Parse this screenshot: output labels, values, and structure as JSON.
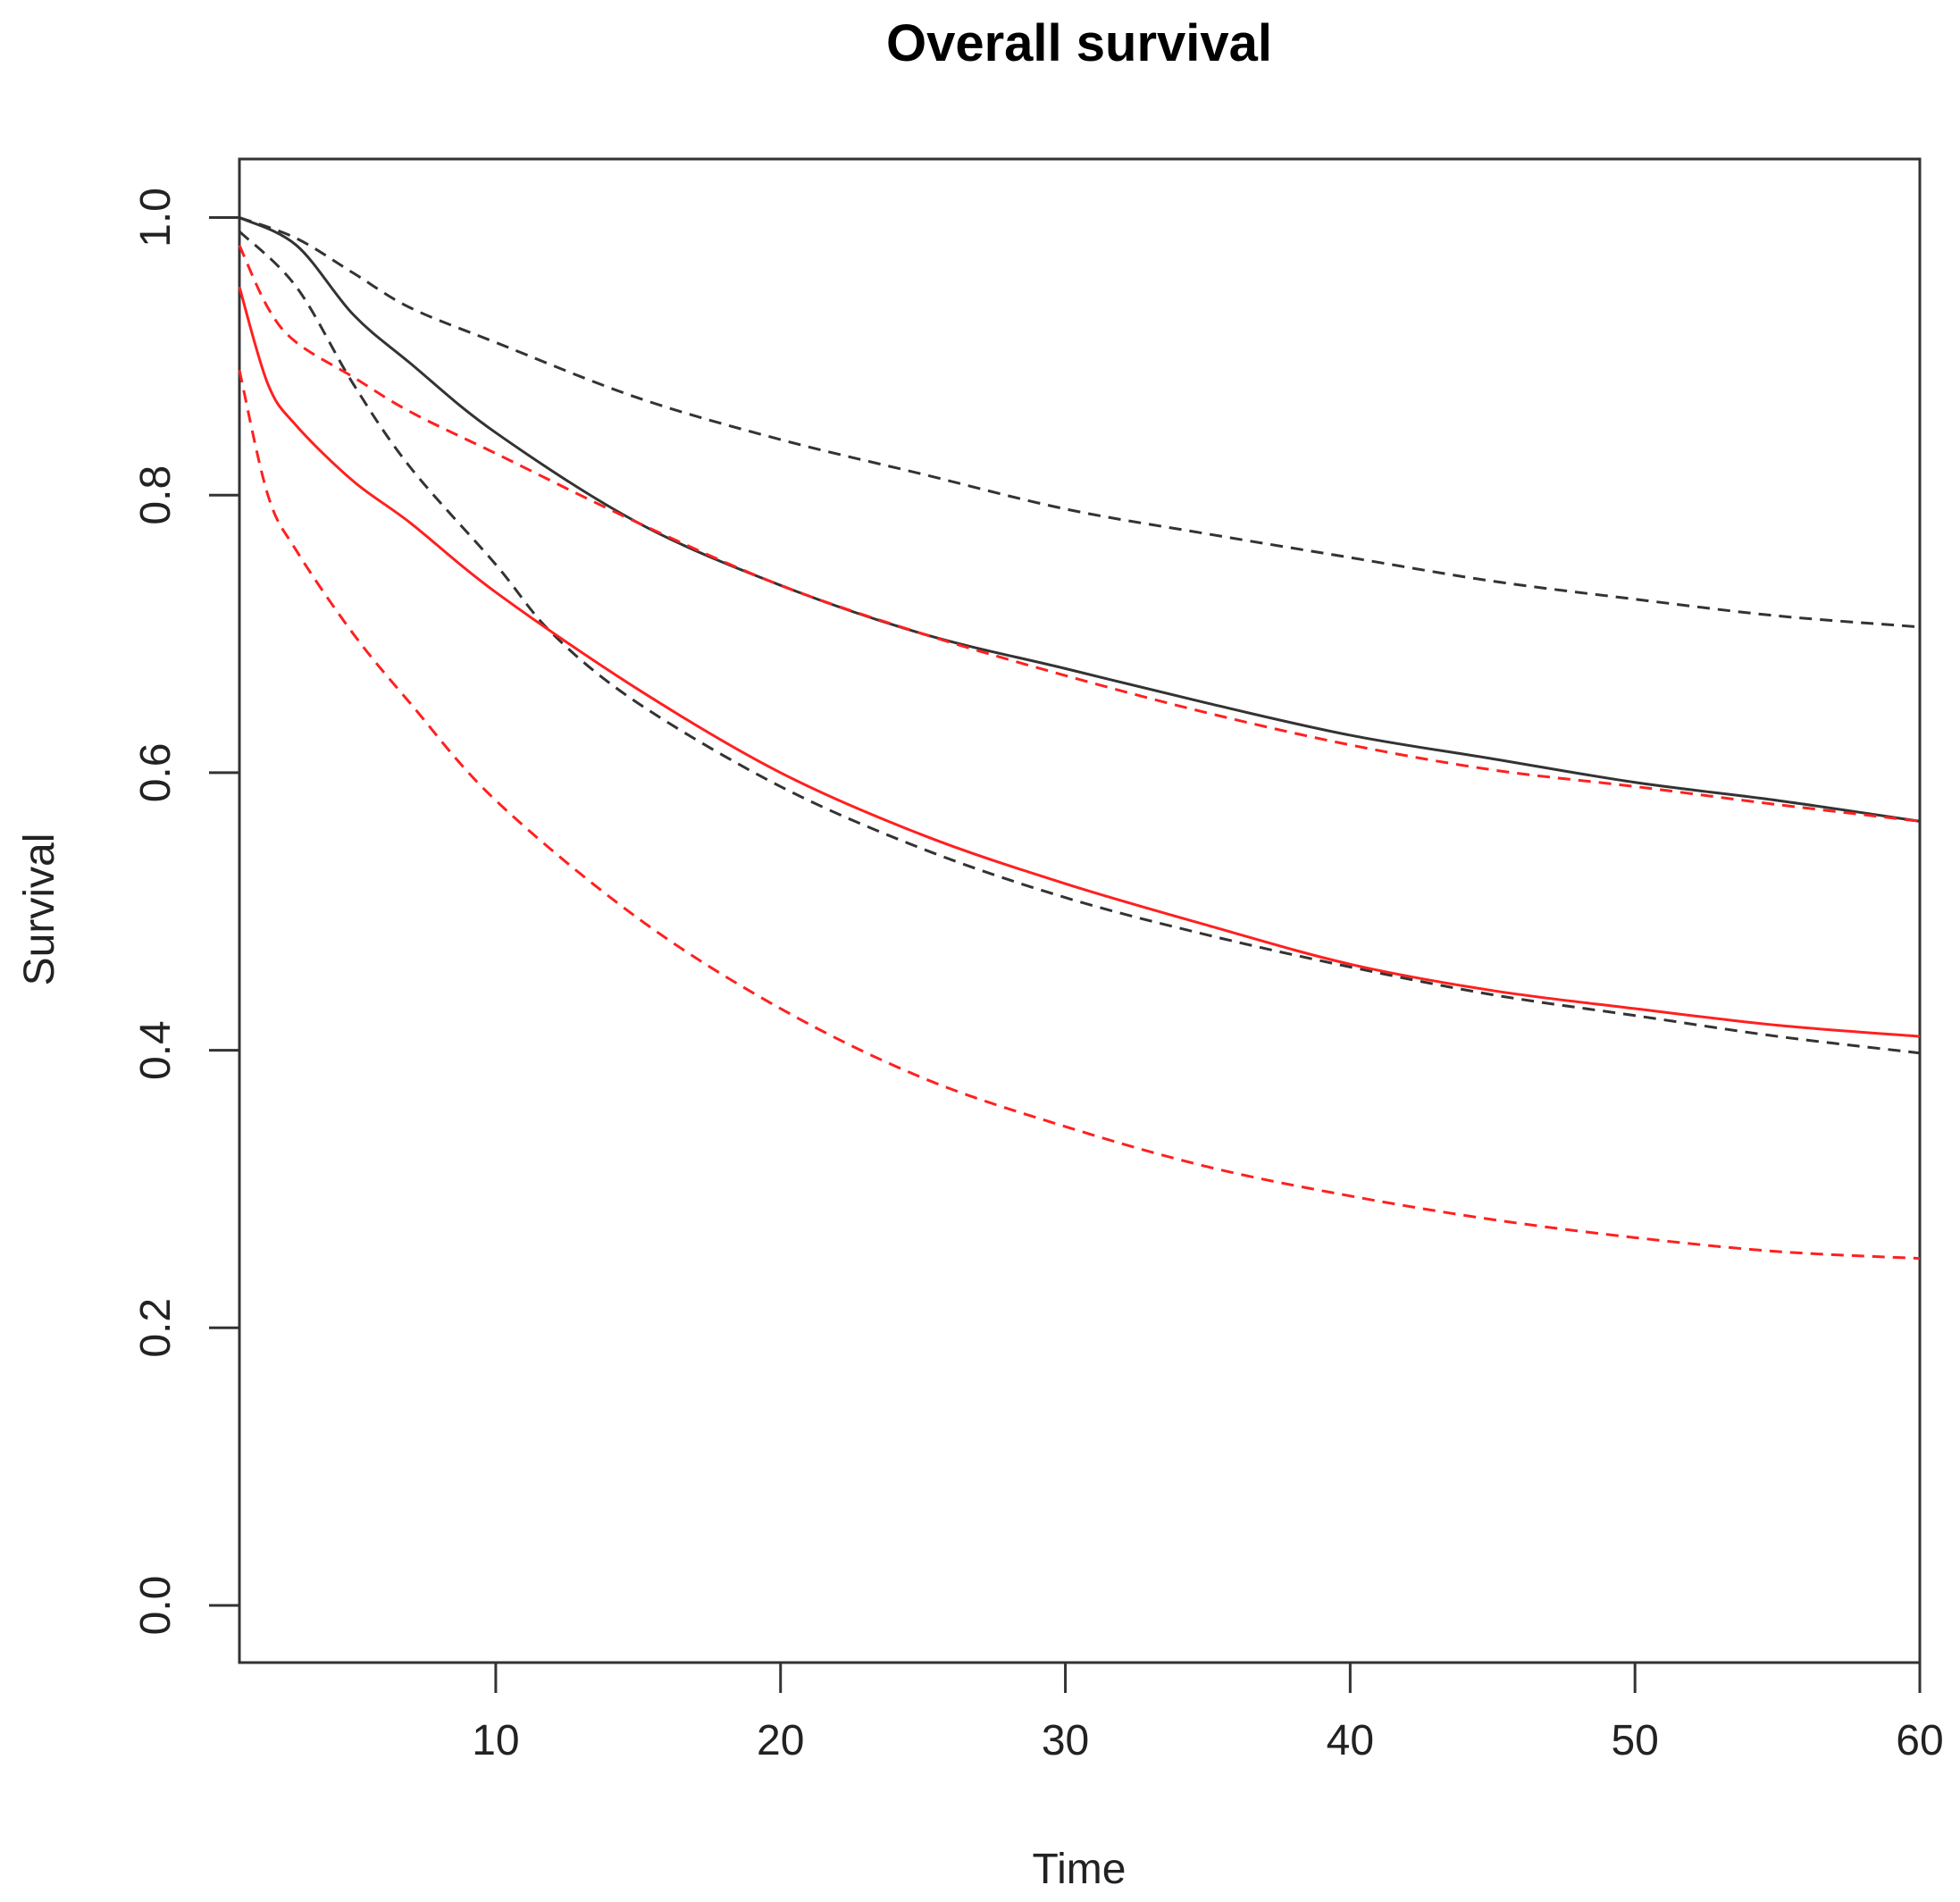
{
  "chart_data": {
    "type": "line",
    "title": "Overall survival",
    "xlabel": "Time",
    "ylabel": "Survival",
    "xlim": [
      1,
      60
    ],
    "ylim": [
      0,
      1
    ],
    "xticks": [
      "10",
      "20",
      "30",
      "40",
      "50",
      "60"
    ],
    "yticks": [
      "0.0",
      "0.2",
      "0.4",
      "0.6",
      "0.8",
      "1.0"
    ],
    "grid": false,
    "legend": "none",
    "series": [
      {
        "color": "#333333",
        "style": "solid",
        "x": [
          1,
          3,
          5,
          7,
          10,
          15,
          20,
          25,
          30,
          35,
          40,
          45,
          50,
          55,
          60
        ],
        "y": [
          1.0,
          0.98,
          0.93,
          0.895,
          0.845,
          0.78,
          0.735,
          0.7,
          0.675,
          0.65,
          0.627,
          0.61,
          0.593,
          0.58,
          0.565
        ]
      },
      {
        "color": "#333333",
        "style": "dashed",
        "x": [
          1,
          3,
          5,
          7,
          10,
          15,
          20,
          25,
          30,
          35,
          40,
          45,
          50,
          55,
          60
        ],
        "y": [
          1.0,
          0.985,
          0.96,
          0.935,
          0.91,
          0.87,
          0.84,
          0.815,
          0.79,
          0.772,
          0.755,
          0.738,
          0.725,
          0.713,
          0.705
        ]
      },
      {
        "color": "#333333",
        "style": "dashed",
        "x": [
          1,
          3,
          5,
          7,
          10,
          12,
          15,
          20,
          25,
          30,
          35,
          40,
          45,
          50,
          55,
          60
        ],
        "y": [
          0.99,
          0.95,
          0.88,
          0.82,
          0.75,
          0.7,
          0.65,
          0.59,
          0.545,
          0.51,
          0.483,
          0.46,
          0.44,
          0.425,
          0.41,
          0.398
        ]
      },
      {
        "color": "#ff2020",
        "style": "solid",
        "x": [
          1,
          2,
          3,
          5,
          7,
          10,
          15,
          20,
          25,
          30,
          35,
          40,
          45,
          50,
          55,
          60
        ],
        "y": [
          0.95,
          0.88,
          0.85,
          0.81,
          0.78,
          0.73,
          0.66,
          0.6,
          0.555,
          0.52,
          0.49,
          0.462,
          0.443,
          0.43,
          0.418,
          0.41
        ]
      },
      {
        "color": "#ff2020",
        "style": "dashed",
        "x": [
          1,
          2,
          3,
          5,
          7,
          10,
          15,
          20,
          25,
          30,
          35,
          40,
          45,
          50,
          55,
          60
        ],
        "y": [
          0.98,
          0.935,
          0.91,
          0.885,
          0.86,
          0.83,
          0.78,
          0.735,
          0.7,
          0.67,
          0.643,
          0.62,
          0.602,
          0.59,
          0.577,
          0.565
        ]
      },
      {
        "color": "#ff2020",
        "style": "dashed",
        "x": [
          1,
          2,
          3,
          5,
          7,
          10,
          15,
          20,
          25,
          30,
          35,
          40,
          45,
          50,
          55,
          60
        ],
        "y": [
          0.89,
          0.8,
          0.76,
          0.7,
          0.65,
          0.58,
          0.495,
          0.43,
          0.38,
          0.345,
          0.316,
          0.295,
          0.278,
          0.265,
          0.255,
          0.25
        ]
      }
    ]
  }
}
